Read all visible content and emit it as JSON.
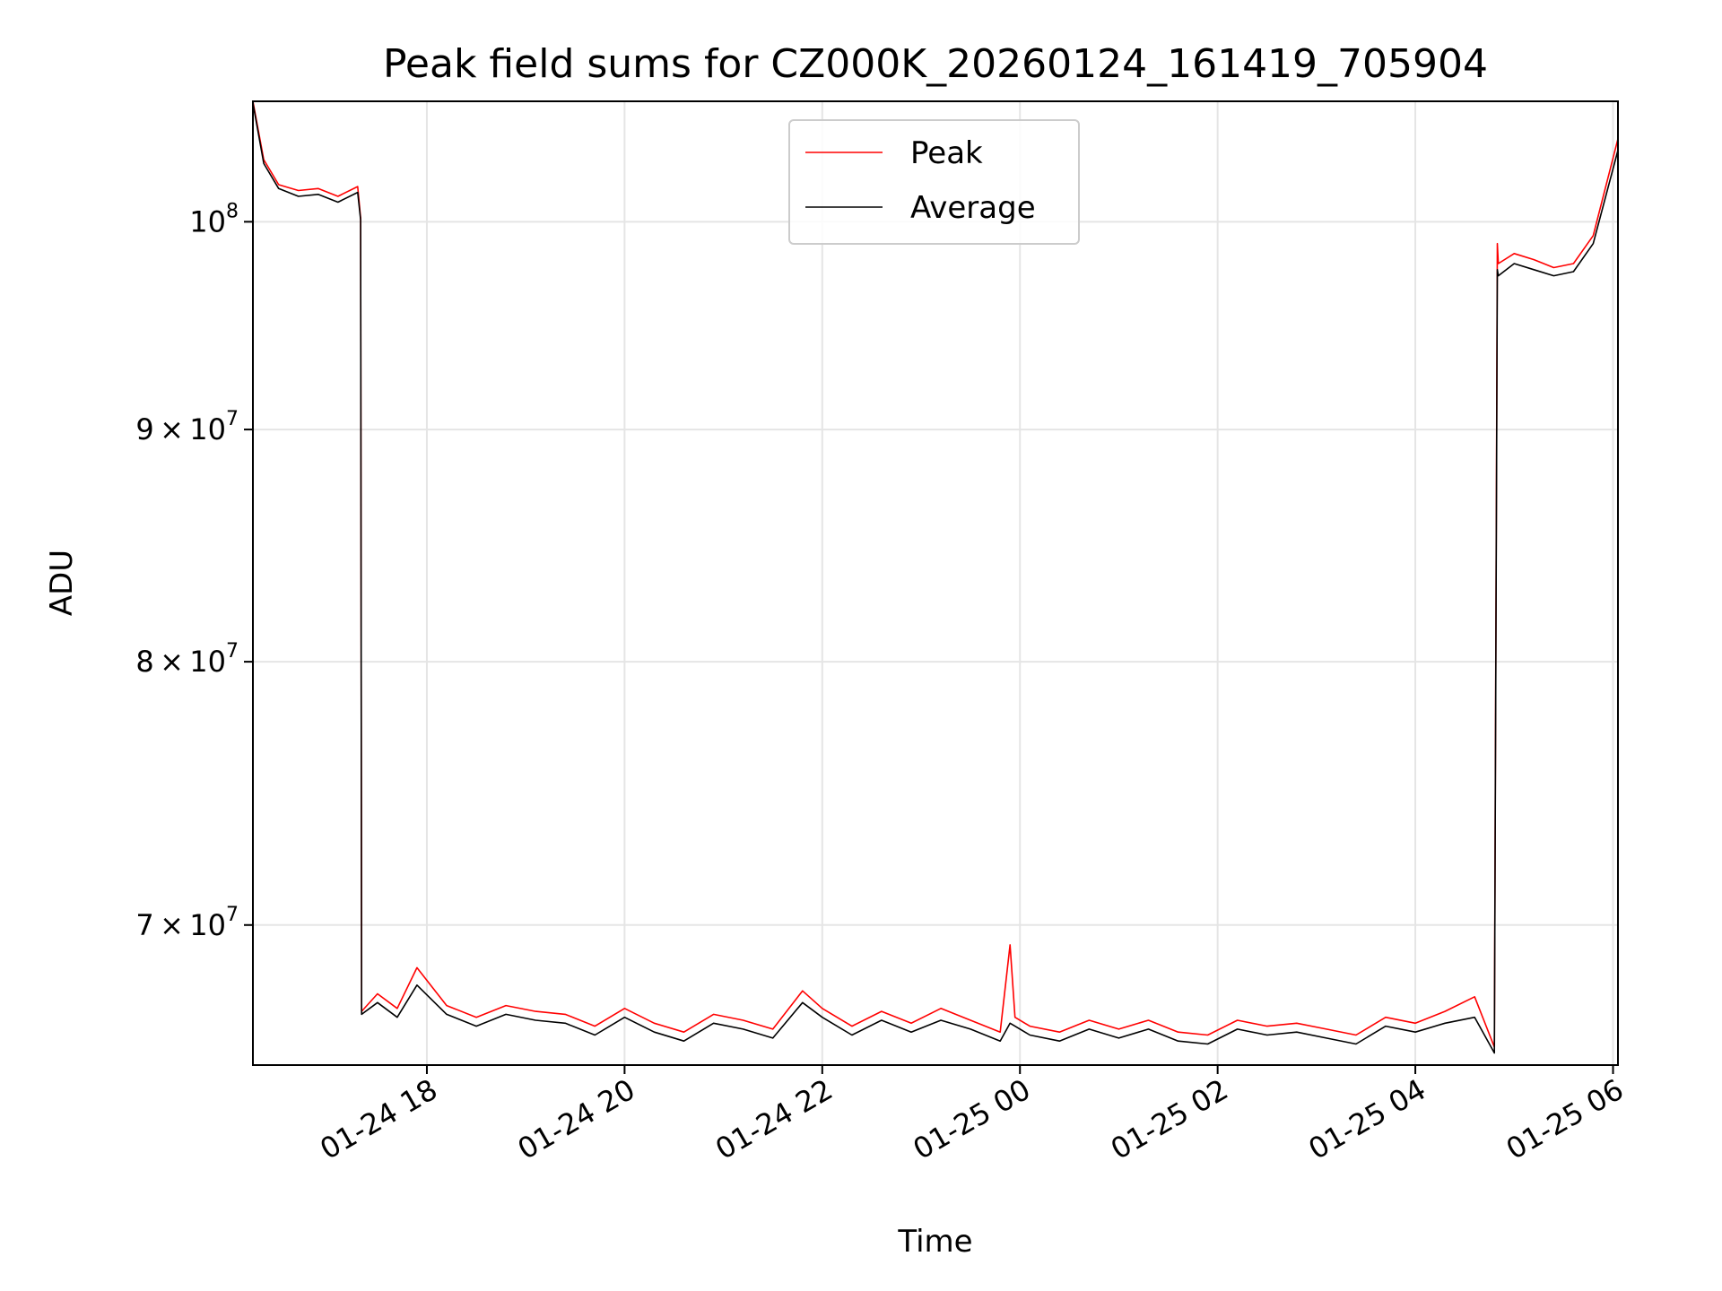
{
  "chart_data": {
    "type": "line",
    "title": "Peak field sums for CZ000K_20260124_161419_705904",
    "xlabel": "Time",
    "ylabel": "ADU",
    "yscale": "log",
    "grid": true,
    "legend_position": "top-center",
    "x_unit": "hours since 2026-01-24 00:00",
    "xlim": [
      16.24,
      30.05
    ],
    "ylim": [
      65200000,
      106300000
    ],
    "x_ticks": [
      {
        "value": 18,
        "label": "01-24 18"
      },
      {
        "value": 20,
        "label": "01-24 20"
      },
      {
        "value": 22,
        "label": "01-24 22"
      },
      {
        "value": 24,
        "label": "01-25 00"
      },
      {
        "value": 26,
        "label": "01-25 02"
      },
      {
        "value": 28,
        "label": "01-25 04"
      },
      {
        "value": 30,
        "label": "01-25 06"
      }
    ],
    "y_ticks": [
      {
        "value": 70000000,
        "base": "7 × 10",
        "exp": "7"
      },
      {
        "value": 80000000,
        "base": "8 × 10",
        "exp": "7"
      },
      {
        "value": 90000000,
        "base": "9 × 10",
        "exp": "7"
      },
      {
        "value": 100000000,
        "base": "10",
        "exp": "8"
      }
    ],
    "series": [
      {
        "name": "Peak",
        "color": "#ff0000",
        "x": [
          16.24,
          16.35,
          16.5,
          16.7,
          16.9,
          17.1,
          17.3,
          17.33,
          17.34,
          17.5,
          17.7,
          17.9,
          18.2,
          18.5,
          18.8,
          19.1,
          19.4,
          19.7,
          20.0,
          20.3,
          20.6,
          20.9,
          21.2,
          21.5,
          21.8,
          22.0,
          22.3,
          22.6,
          22.9,
          23.2,
          23.5,
          23.8,
          23.9,
          23.95,
          24.1,
          24.4,
          24.7,
          25.0,
          25.3,
          25.6,
          25.9,
          26.2,
          26.5,
          26.8,
          27.1,
          27.4,
          27.7,
          28.0,
          28.3,
          28.6,
          28.8,
          28.83,
          28.84,
          29.0,
          29.2,
          29.4,
          29.6,
          29.8,
          30.05
        ],
        "values": [
          106300000,
          103200000,
          101900000,
          101600000,
          101700000,
          101300000,
          101800000,
          100200000,
          67000000,
          67600000,
          67100000,
          68500000,
          67200000,
          66800000,
          67200000,
          67000000,
          66900000,
          66500000,
          67100000,
          66600000,
          66300000,
          66900000,
          66700000,
          66400000,
          67700000,
          67100000,
          66500000,
          67000000,
          66600000,
          67100000,
          66700000,
          66300000,
          69300000,
          66800000,
          66500000,
          66300000,
          66700000,
          66400000,
          66700000,
          66300000,
          66200000,
          66700000,
          66500000,
          66600000,
          66400000,
          66200000,
          66800000,
          66600000,
          67000000,
          67500000,
          65800000,
          98900000,
          97900000,
          98400000,
          98100000,
          97700000,
          97900000,
          99300000,
          104300000
        ]
      },
      {
        "name": "Average",
        "color": "#000000",
        "x": [
          16.24,
          16.35,
          16.5,
          16.7,
          16.9,
          17.1,
          17.3,
          17.33,
          17.34,
          17.5,
          17.7,
          17.9,
          18.2,
          18.5,
          18.8,
          19.1,
          19.4,
          19.7,
          20.0,
          20.3,
          20.6,
          20.9,
          21.2,
          21.5,
          21.8,
          22.0,
          22.3,
          22.6,
          22.9,
          23.2,
          23.5,
          23.8,
          23.9,
          23.95,
          24.1,
          24.4,
          24.7,
          25.0,
          25.3,
          25.6,
          25.9,
          26.2,
          26.5,
          26.8,
          27.1,
          27.4,
          27.7,
          28.0,
          28.3,
          28.6,
          28.8,
          28.83,
          28.84,
          29.0,
          29.2,
          29.4,
          29.6,
          29.8,
          30.05
        ],
        "values": [
          106200000,
          103000000,
          101700000,
          101300000,
          101400000,
          101000000,
          101500000,
          100100000,
          66900000,
          67300000,
          66800000,
          67900000,
          66900000,
          66500000,
          66900000,
          66700000,
          66600000,
          66200000,
          66800000,
          66300000,
          66000000,
          66600000,
          66400000,
          66100000,
          67300000,
          66800000,
          66200000,
          66700000,
          66300000,
          66700000,
          66400000,
          66000000,
          66600000,
          66500000,
          66200000,
          66000000,
          66400000,
          66100000,
          66400000,
          66000000,
          65900000,
          66400000,
          66200000,
          66300000,
          66100000,
          65900000,
          66500000,
          66300000,
          66600000,
          66800000,
          65600000,
          97600000,
          97300000,
          97900000,
          97600000,
          97300000,
          97500000,
          98900000,
          103700000
        ]
      }
    ]
  }
}
